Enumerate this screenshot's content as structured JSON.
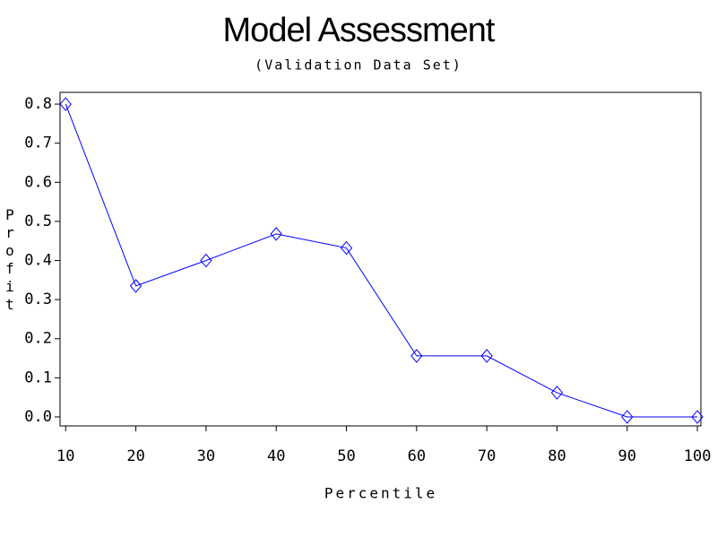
{
  "chart_data": {
    "type": "line",
    "title": "Model Assessment",
    "subtitle": "(Validation Data Set)",
    "x_label": "Percentile",
    "y_label": "Profit",
    "x": [
      10,
      20,
      30,
      40,
      50,
      60,
      70,
      80,
      90,
      100
    ],
    "series": [
      {
        "name": "Profit",
        "color": "#0000ff",
        "values": [
          0.8,
          0.335,
          0.4,
          0.468,
          0.432,
          0.156,
          0.156,
          0.062,
          0.0,
          0.0
        ]
      }
    ],
    "xlim": [
      9.2,
      100.5
    ],
    "ylim": [
      -0.023,
      0.83
    ],
    "xticks": [
      10,
      20,
      30,
      40,
      50,
      60,
      70,
      80,
      90,
      100
    ],
    "yticks": [
      {
        "value": 0,
        "label": "0.0"
      },
      0.1,
      0.2,
      0.3,
      0.4,
      0.5,
      0.6,
      0.7,
      0.8
    ],
    "marker": "diamond",
    "grid": false
  }
}
